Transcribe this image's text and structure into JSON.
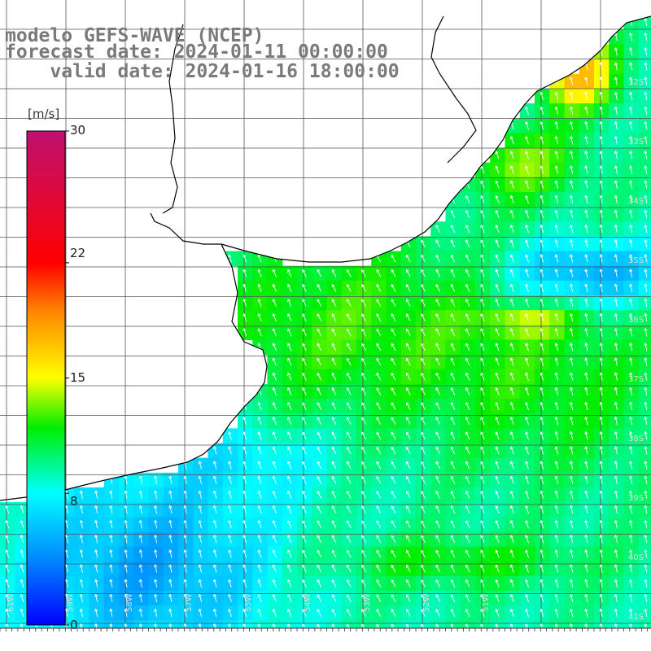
{
  "header": {
    "model_line": "modelo GEFS-WAVE (NCEP)",
    "forecast_line": "forecast date: 2024-01-11 00:00:00",
    "valid_line": "    valid date: 2024-01-16 18:00:00"
  },
  "colorbar": {
    "unit": "[m/s]",
    "ticks": [
      {
        "label": "30",
        "value": 30
      },
      {
        "label": "22",
        "value": 22
      },
      {
        "label": "15",
        "value": 15
      },
      {
        "label": "8",
        "value": 8
      },
      {
        "label": "0",
        "value": 0
      }
    ],
    "stops": [
      {
        "value": 0,
        "color": "#0000ff"
      },
      {
        "value": 4,
        "color": "#0088ff"
      },
      {
        "value": 8,
        "color": "#00ffff"
      },
      {
        "value": 12,
        "color": "#00ee00"
      },
      {
        "value": 15,
        "color": "#ffff00"
      },
      {
        "value": 19,
        "color": "#ff8800"
      },
      {
        "value": 22,
        "color": "#ff0000"
      },
      {
        "value": 30,
        "color": "#c01070"
      }
    ]
  },
  "map": {
    "lon_labels": [
      "61W",
      "59W",
      "58W",
      "57W",
      "55W",
      "54W",
      "53W",
      "52W",
      "51W"
    ],
    "lat_labels": [
      "32S",
      "33S",
      "34S",
      "35S",
      "36S",
      "37S",
      "38S",
      "39S",
      "40S",
      "41S"
    ],
    "land_color": "#ffffff",
    "coast_color": "#000000",
    "grid_color": "#555555"
  }
}
